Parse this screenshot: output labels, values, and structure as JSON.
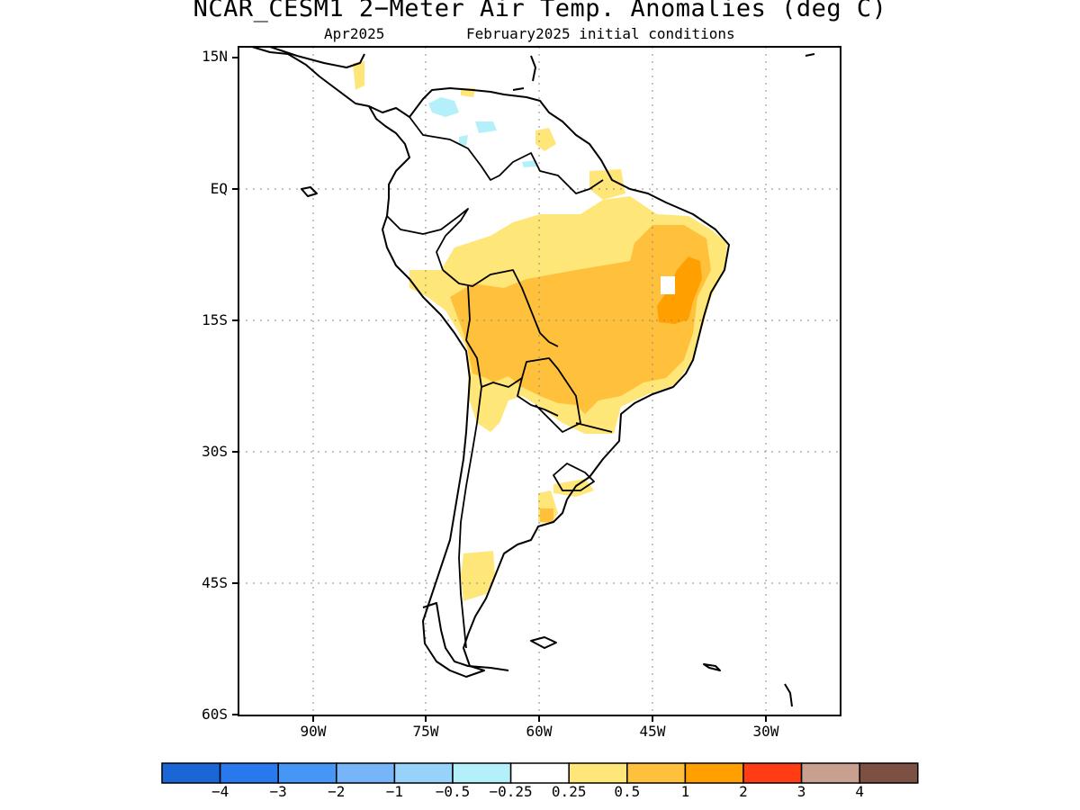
{
  "title": "NCAR_CESM1 2−Meter Air Temp. Anomalies (deg C)",
  "subtitle_left": "Apr2025",
  "subtitle_right": "February2025 initial conditions",
  "lat_labels": [
    "15N",
    "EQ",
    "15S",
    "30S",
    "45S",
    "60S"
  ],
  "lon_labels": [
    "90W",
    "75W",
    "60W",
    "45W",
    "30W"
  ],
  "colorbar": {
    "colors": [
      "#1a66d6",
      "#2878ee",
      "#4696f5",
      "#78b4f8",
      "#96d2fa",
      "#b4f0fa",
      "#ffffff",
      "#ffe678",
      "#ffc03c",
      "#ffa000",
      "#ff3c14",
      "#c8a090",
      "#7d5044"
    ],
    "labels": [
      "−4",
      "−3",
      "−2",
      "−1",
      "−0.5",
      "−0.25",
      "0.25",
      "0.5",
      "1",
      "2",
      "3",
      "4"
    ]
  },
  "legend_colors": {
    "light_yellow": "#ffe678",
    "yellow_orange": "#ffc03c",
    "orange": "#ffa000",
    "light_blue": "#b4f0fa"
  }
}
